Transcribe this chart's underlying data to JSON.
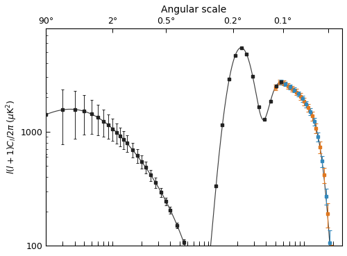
{
  "title": "Angular scale",
  "ylabel": "$l(l+1)C_l/2\\pi$ ($\\mu$K$^2$)",
  "xlim": [
    2,
    2500
  ],
  "ylim": [
    100,
    8000
  ],
  "bg_color": "#ffffff",
  "curve_color": "#404040",
  "black_data_color": "#222222",
  "orange_data_color": "#e07820",
  "blue_data_color": "#3388bb",
  "angular_ticks_ell": [
    2,
    10,
    36,
    180,
    600,
    1800
  ],
  "angular_labels": [
    "90°",
    "2°",
    "0.5°",
    "0.2°",
    "0.1°",
    ""
  ]
}
